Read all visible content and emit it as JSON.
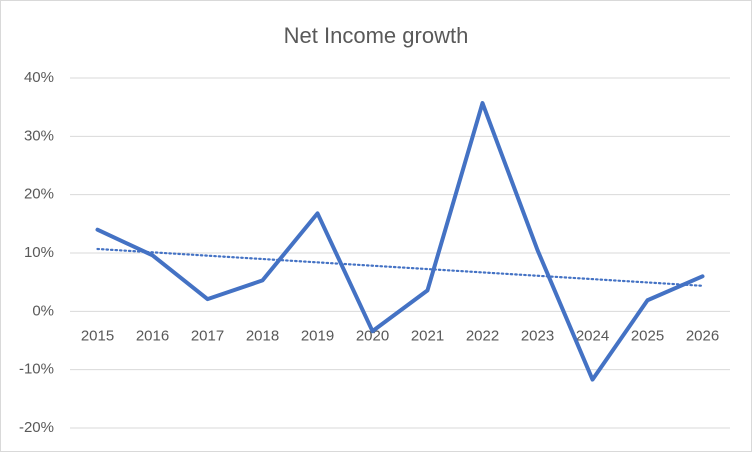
{
  "chart_data": {
    "type": "line",
    "title": "Net Income growth",
    "categories": [
      "2015",
      "2016",
      "2017",
      "2018",
      "2019",
      "2020",
      "2021",
      "2022",
      "2023",
      "2024",
      "2025",
      "2026"
    ],
    "series": [
      {
        "name": "Net Income growth",
        "color": "#4472c4",
        "values": [
          14,
          9.6,
          2.1,
          5.3,
          16.8,
          -3.4,
          3.6,
          35.7,
          10.5,
          -11.7,
          1.9,
          6.0
        ]
      }
    ],
    "ylim": [
      -20,
      40
    ],
    "yticks": [
      {
        "value": -20,
        "label": "-20%"
      },
      {
        "value": -10,
        "label": "-10%"
      },
      {
        "value": 0,
        "label": "0%"
      },
      {
        "value": 10,
        "label": "10%"
      },
      {
        "value": 20,
        "label": "20%"
      },
      {
        "value": 30,
        "label": "30%"
      },
      {
        "value": 40,
        "label": "40%"
      }
    ],
    "grid": true,
    "trendline": "linear"
  }
}
